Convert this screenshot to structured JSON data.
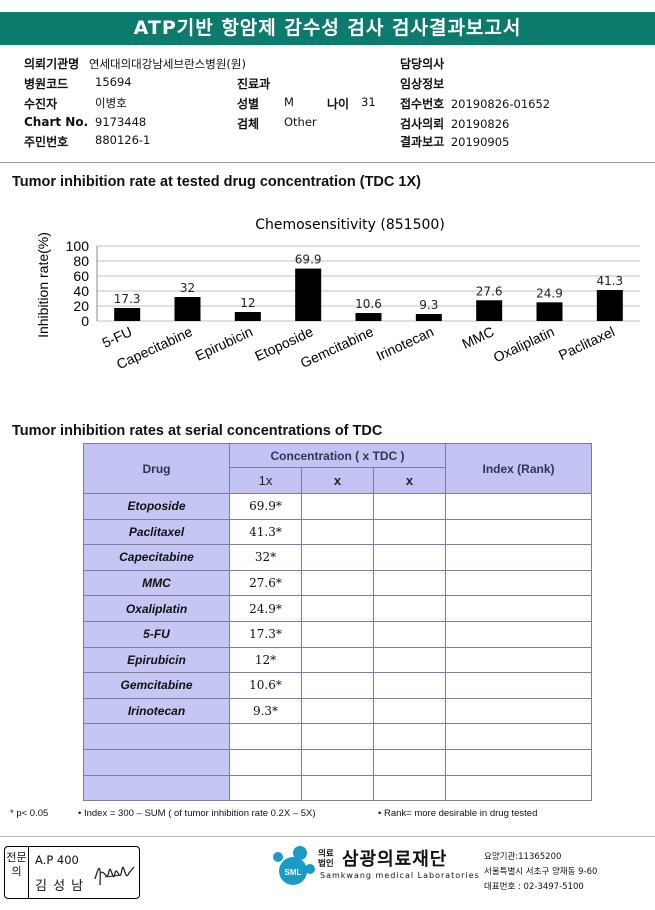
{
  "report": {
    "title": "ATP기반 항암제 감수성 검사 검사결과보고서"
  },
  "header": {
    "institution_label": "의뢰기관명",
    "institution_value": "연세대의대강남세브란스병원(원)",
    "doctor_label": "담당의사",
    "hospital_code_label": "병원코드",
    "hospital_code_value": "15694",
    "department_label": "진료과",
    "clinical_info_label": "임상정보",
    "patient_label": "수진자",
    "patient_value": "이병호",
    "sex_label": "성별",
    "sex_value": "M",
    "age_label": "나이",
    "age_value": "31",
    "reception_no_label": "접수번호",
    "reception_no_value": "20190826-01652",
    "chart_no_label": "Chart No.",
    "chart_no_value": "9173448",
    "specimen_label": "검체",
    "specimen_value": "Other",
    "request_date_label": "검사의뢰",
    "request_date_value": "20190826",
    "id_no_label": "주민번호",
    "id_no_value": "880126-1",
    "report_date_label": "결과보고",
    "report_date_value": "20190905"
  },
  "section1_title": "Tumor inhibition rate at tested drug concentration (TDC 1X)",
  "section2_title": "Tumor inhibition rates at serial concentrations of TDC",
  "chart_data": {
    "type": "bar",
    "title": "Chemosensitivity (851500)",
    "ylabel": "Inhibition rate(%)",
    "xlabel": "",
    "categories": [
      "5-FU",
      "Capecitabine",
      "Epirubicin",
      "Etoposide",
      "Gemcitabine",
      "Irinotecan",
      "MMC",
      "Oxaliplatin",
      "Paclitaxel"
    ],
    "values": [
      17.3,
      32,
      12,
      69.9,
      10.6,
      9.3,
      27.6,
      24.9,
      41.3
    ],
    "data_labels": [
      "17.3",
      "32",
      "12",
      "69.9",
      "10.6",
      "9.3",
      "27.6",
      "24.9",
      "41.3"
    ],
    "ylim": [
      0,
      100
    ],
    "yticks": [
      "0",
      "20",
      "40",
      "60",
      "80",
      "100"
    ],
    "grid": true,
    "bar_color": "#000000",
    "grid_color": "#c0c0c0"
  },
  "table": {
    "col_drug": "Drug",
    "col_concentration": "Concentration ( x TDC )",
    "col_index": "Index (Rank)",
    "sub_1x": "1x",
    "sub_x2": "x",
    "sub_x3": "x",
    "rows": [
      {
        "drug": "Etoposide",
        "value": "69.9*"
      },
      {
        "drug": "Paclitaxel",
        "value": "41.3*"
      },
      {
        "drug": "Capecitabine",
        "value": "32*"
      },
      {
        "drug": "MMC",
        "value": "27.6*"
      },
      {
        "drug": "Oxaliplatin",
        "value": "24.9*"
      },
      {
        "drug": "5-FU",
        "value": "17.3*"
      },
      {
        "drug": "Epirubicin",
        "value": "12*"
      },
      {
        "drug": "Gemcitabine",
        "value": "10.6*"
      },
      {
        "drug": "Irinotecan",
        "value": "9.3*"
      },
      {
        "drug": "",
        "value": ""
      },
      {
        "drug": "",
        "value": ""
      },
      {
        "drug": "",
        "value": ""
      }
    ]
  },
  "footnotes": {
    "note1": "* p< 0.05",
    "note2": "• Index = 300 – SUM ( of tumor inhibition rate 0.2X – 5X)",
    "note3": "• Rank= more desirable in drug tested"
  },
  "signature": {
    "tag": "전문의",
    "code": "A.P 400",
    "name": "김 성 남"
  },
  "organization": {
    "logo_text": "SML",
    "legal_small": "의료 법인",
    "name_ko": "삼광의료재단",
    "name_en": "Samkwang medical Laboratories",
    "care_no": "요양기관:11365200",
    "address": "서울특별시 서초구 양재동 9-60",
    "phone": "대표번호 : 02-3497-5100"
  },
  "colors": {
    "title_bar": "#0c7a6c",
    "table_header": "#c2c2f3",
    "logo": "#1a9bc4"
  }
}
